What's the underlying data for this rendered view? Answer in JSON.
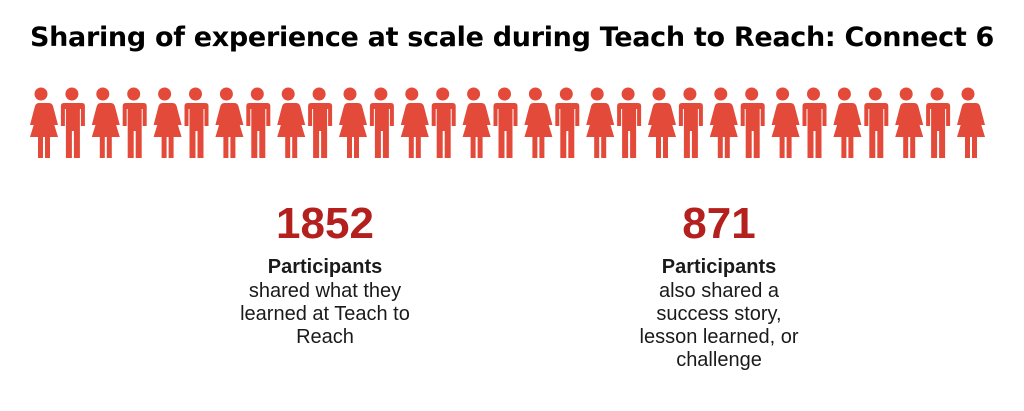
{
  "title": "Sharing of experience at scale during Teach to Reach: Connect 6",
  "colors": {
    "accent": "#b3201e",
    "figures": "#e34a3a"
  },
  "icon": "person-figures-row",
  "stats": [
    {
      "number": "1852",
      "heading": "Participants",
      "description": "shared what they learned at Teach to Reach"
    },
    {
      "number": "871",
      "heading": "Participants",
      "description": "also shared a success story, lesson learned, or challenge"
    }
  ]
}
